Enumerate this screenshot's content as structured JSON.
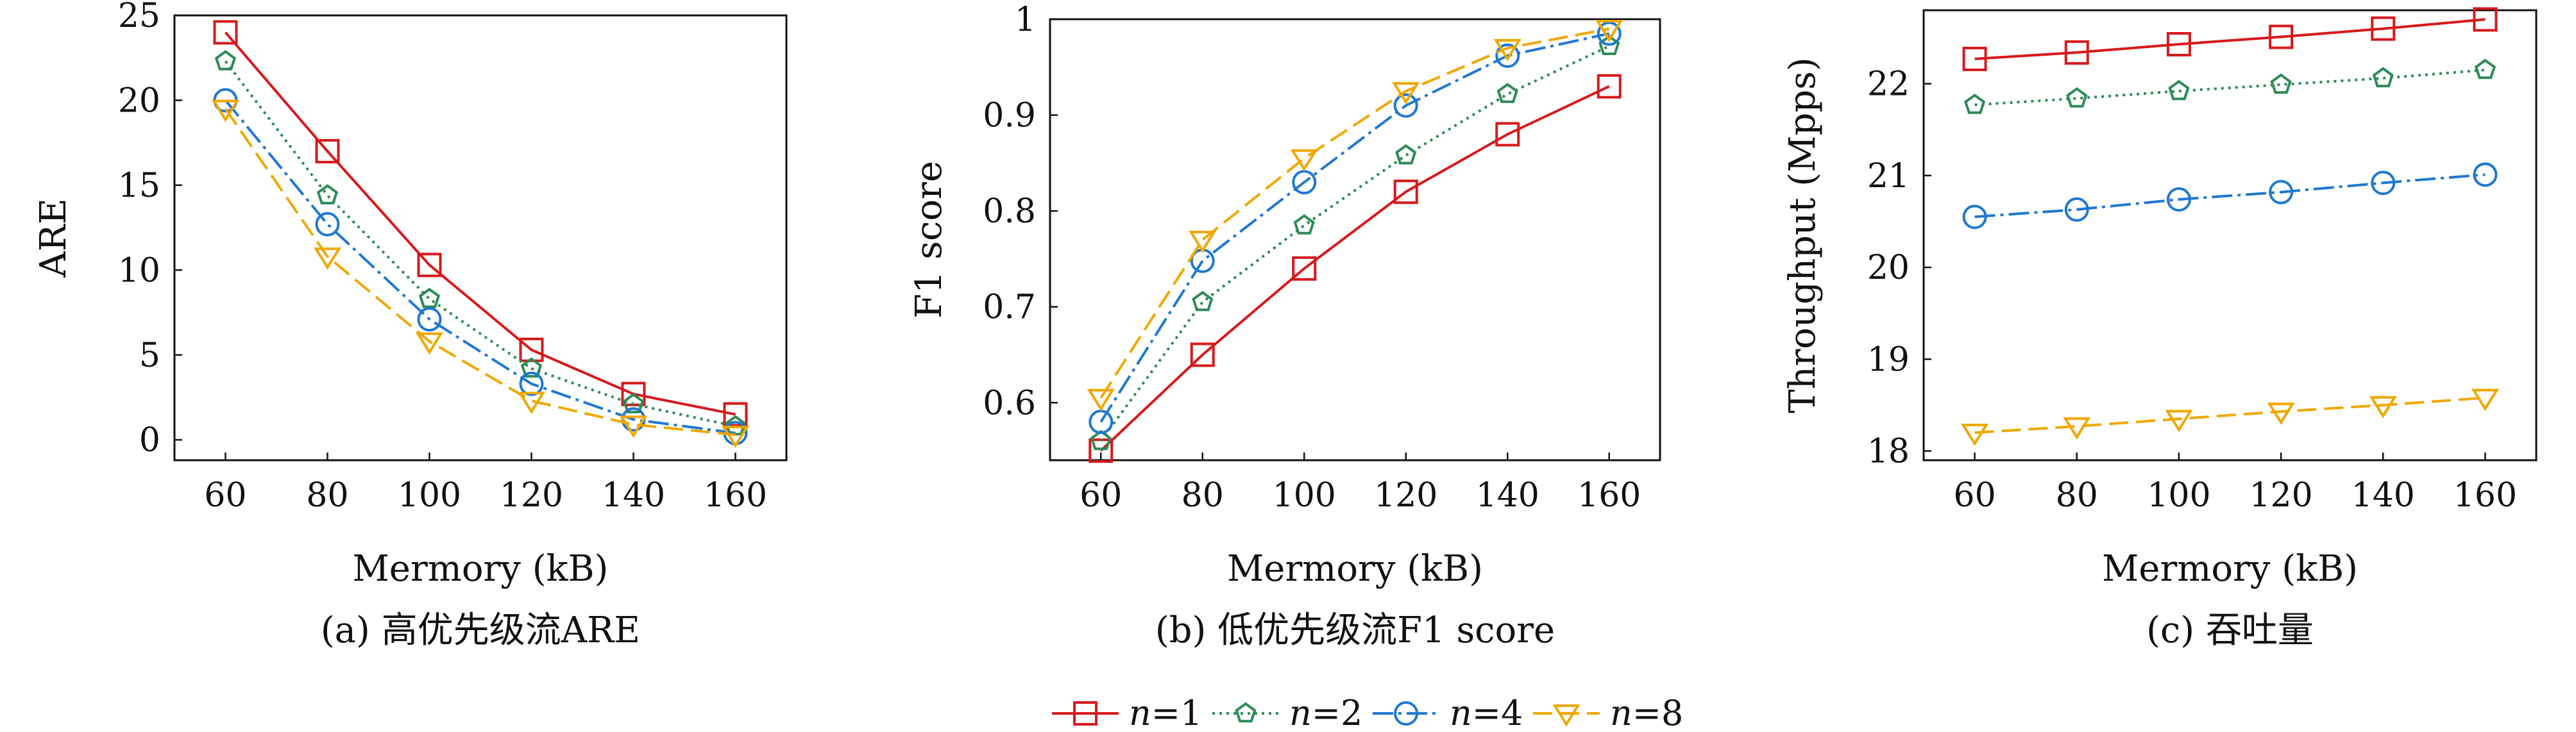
{
  "chart_data": [
    {
      "type": "line",
      "subplot_label": "(a) 高优先级流ARE",
      "xlabel": "Mermory (kB)",
      "ylabel": "ARE",
      "x": [
        60,
        80,
        100,
        120,
        140,
        160
      ],
      "xlim": [
        50,
        170
      ],
      "ylim": [
        -1.2,
        25
      ],
      "yticks": [
        0,
        5,
        10,
        15,
        20,
        25
      ],
      "series": [
        {
          "name": "n=1",
          "values": [
            24.0,
            17.0,
            10.3,
            5.3,
            2.7,
            1.5
          ]
        },
        {
          "name": "n=2",
          "values": [
            22.3,
            14.4,
            8.3,
            4.2,
            2.1,
            0.8
          ]
        },
        {
          "name": "n=4",
          "values": [
            20.0,
            12.7,
            7.1,
            3.3,
            1.2,
            0.4
          ]
        },
        {
          "name": "n=8",
          "values": [
            19.5,
            10.8,
            5.8,
            2.3,
            0.9,
            0.3
          ]
        }
      ]
    },
    {
      "type": "line",
      "subplot_label": "(b) 低优先级流F1 score",
      "xlabel": "Mermory (kB)",
      "ylabel": "F1 score",
      "x": [
        60,
        80,
        100,
        120,
        140,
        160
      ],
      "xlim": [
        50,
        170
      ],
      "ylim": [
        0.54,
        1.0
      ],
      "yticks": [
        0.6,
        0.7,
        0.8,
        0.9,
        1.0
      ],
      "series": [
        {
          "name": "n=1",
          "values": [
            0.55,
            0.65,
            0.74,
            0.82,
            0.88,
            0.93
          ]
        },
        {
          "name": "n=2",
          "values": [
            0.56,
            0.705,
            0.785,
            0.858,
            0.922,
            0.972
          ]
        },
        {
          "name": "n=4",
          "values": [
            0.58,
            0.748,
            0.83,
            0.91,
            0.962,
            0.985
          ]
        },
        {
          "name": "n=8",
          "values": [
            0.605,
            0.77,
            0.855,
            0.925,
            0.97,
            0.99
          ]
        }
      ]
    },
    {
      "type": "line",
      "subplot_label": "(c) 吞吐量",
      "xlabel": "Mermory (kB)",
      "ylabel": "Throughput (Mpps)",
      "x": [
        60,
        80,
        100,
        120,
        140,
        160
      ],
      "xlim": [
        50,
        170
      ],
      "ylim": [
        17.9,
        22.8
      ],
      "yticks": [
        18,
        19,
        20,
        21,
        22
      ],
      "series": [
        {
          "name": "n=1",
          "values": [
            22.27,
            22.34,
            22.43,
            22.51,
            22.6,
            22.7
          ]
        },
        {
          "name": "n=2",
          "values": [
            21.77,
            21.84,
            21.92,
            21.99,
            22.06,
            22.15
          ]
        },
        {
          "name": "n=4",
          "values": [
            20.55,
            20.63,
            20.74,
            20.82,
            20.92,
            21.01
          ]
        },
        {
          "name": "n=8",
          "values": [
            18.2,
            18.27,
            18.35,
            18.43,
            18.5,
            18.58
          ]
        }
      ]
    }
  ],
  "legend": {
    "position": "bottom-center",
    "entries": [
      {
        "var": "n",
        "eq": "=1"
      },
      {
        "var": "n",
        "eq": "=2"
      },
      {
        "var": "n",
        "eq": "=4"
      },
      {
        "var": "n",
        "eq": "=8"
      }
    ]
  },
  "styles": [
    {
      "color": "#d7191c",
      "marker": "square",
      "dash": ""
    },
    {
      "color": "#2e8b57",
      "marker": "pentagon",
      "dash": "4,7"
    },
    {
      "color": "#1f78d1",
      "marker": "circle",
      "dash": "32,8,5,8"
    },
    {
      "color": "#f0a800",
      "marker": "triangle-down",
      "dash": "30,12"
    }
  ]
}
